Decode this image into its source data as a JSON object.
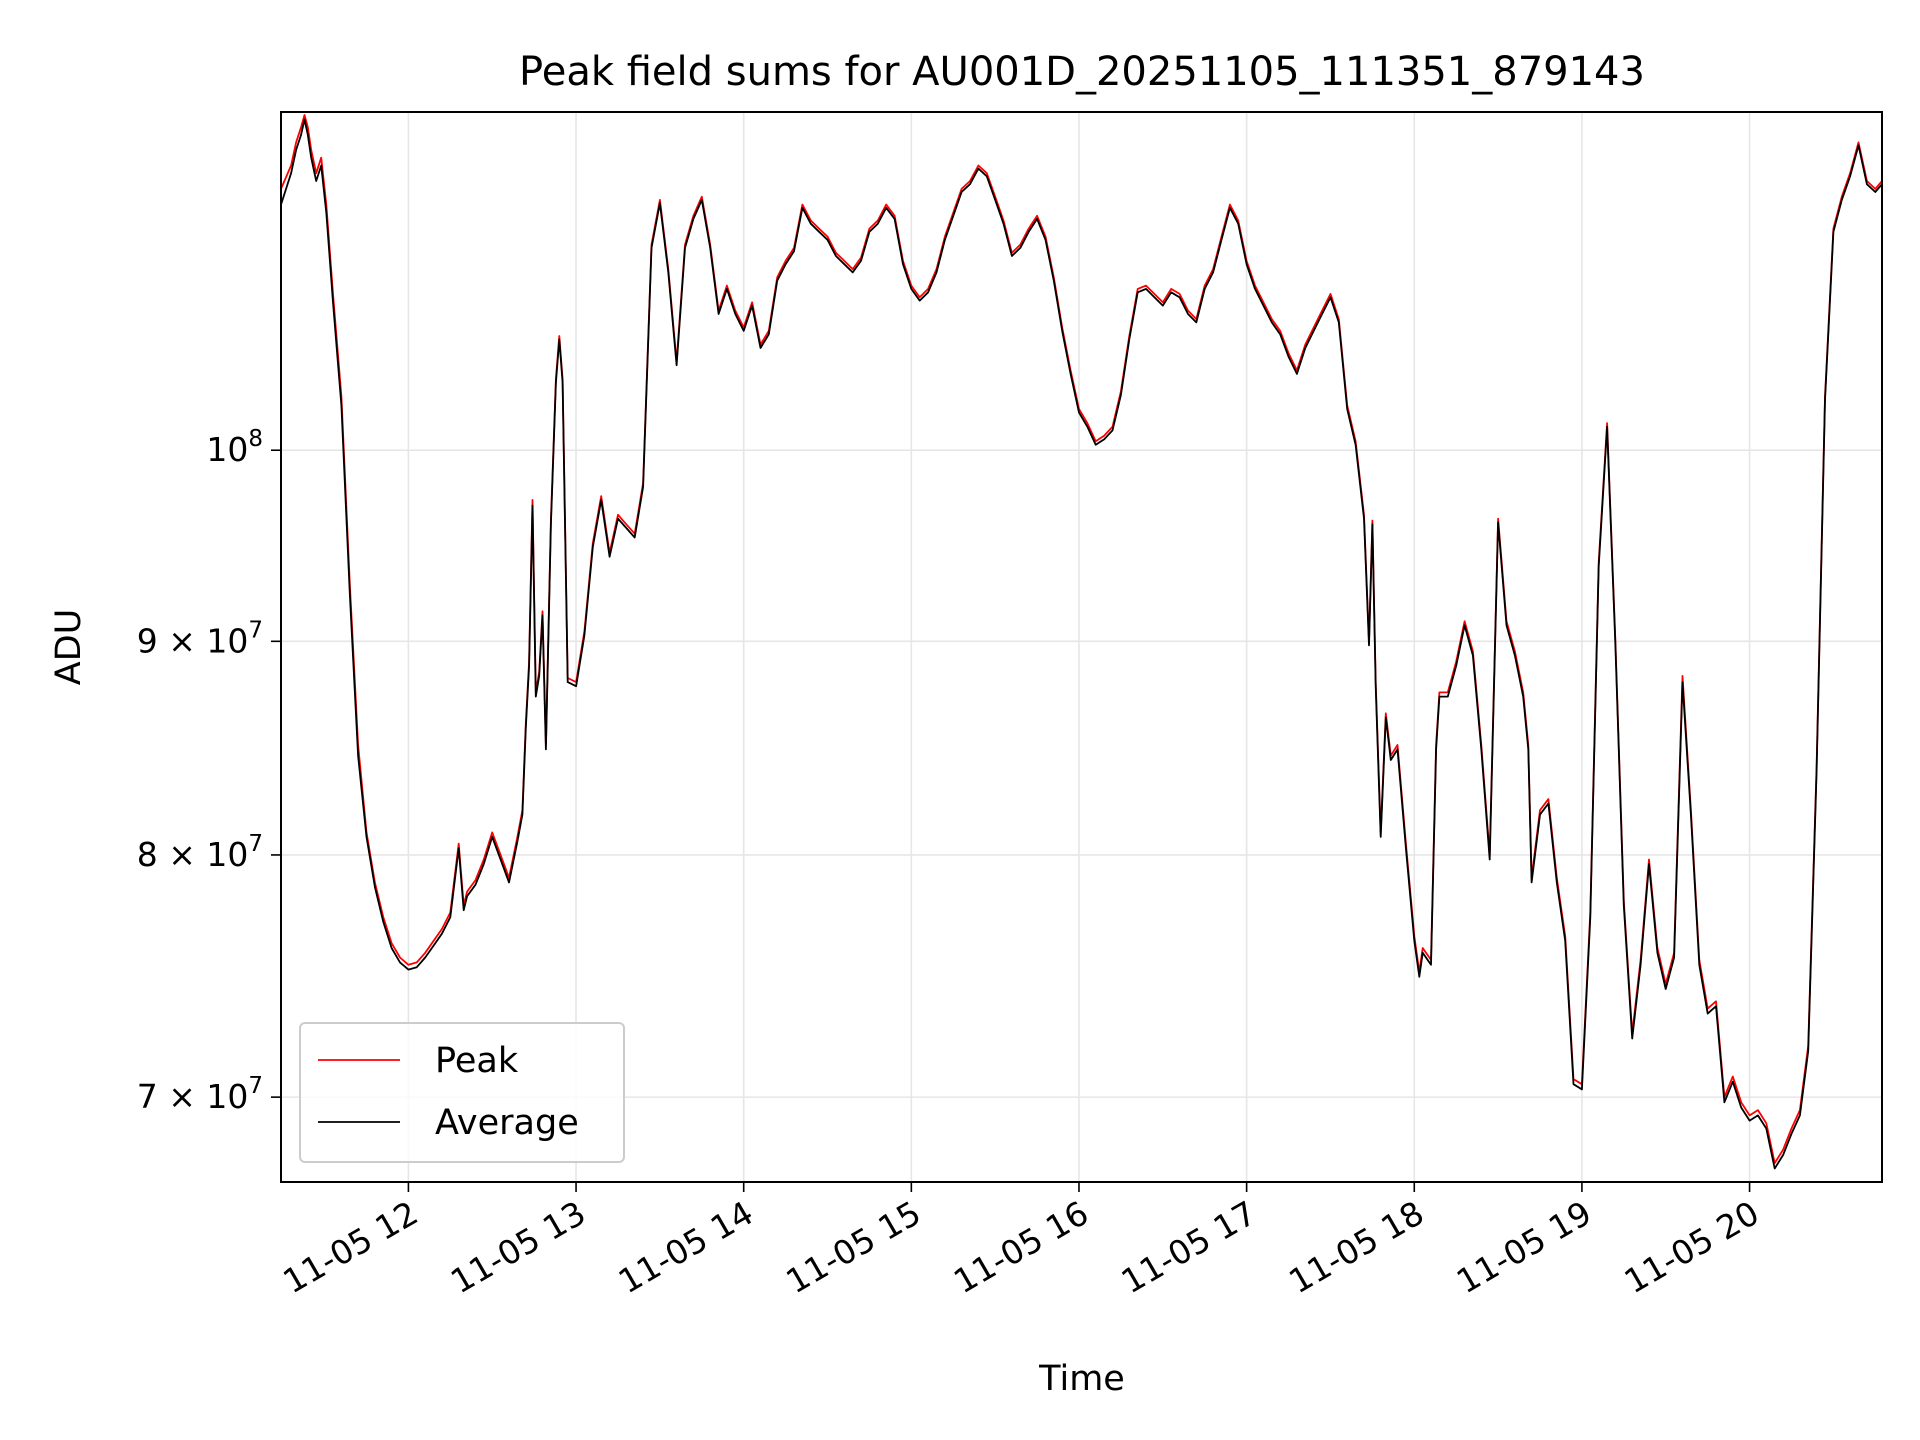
{
  "chart_data": {
    "type": "line",
    "title": "Peak field sums for AU001D_20251105_111351_879143",
    "xlabel": "Time",
    "ylabel": "ADU",
    "x_unit": "hours (Nov 5)",
    "xlim": [
      11.24,
      20.79
    ],
    "ylim": [
      66800000,
      120500000
    ],
    "yscale": "log",
    "grid": true,
    "legend_position": "lower-left",
    "x_ticks": [
      {
        "value": 12,
        "label": "11-05 12"
      },
      {
        "value": 13,
        "label": "11-05 13"
      },
      {
        "value": 14,
        "label": "11-05 14"
      },
      {
        "value": 15,
        "label": "11-05 15"
      },
      {
        "value": 16,
        "label": "11-05 16"
      },
      {
        "value": 17,
        "label": "11-05 17"
      },
      {
        "value": 18,
        "label": "11-05 18"
      },
      {
        "value": 19,
        "label": "11-05 19"
      },
      {
        "value": 20,
        "label": "11-05 20"
      }
    ],
    "y_ticks": [
      {
        "value": 70000000,
        "mantissa": "7",
        "exponent": "7"
      },
      {
        "value": 80000000,
        "mantissa": "8",
        "exponent": "7"
      },
      {
        "value": 90000000,
        "mantissa": "9",
        "exponent": "7"
      },
      {
        "value": 100000000,
        "mantissa": "",
        "exponent": "8"
      }
    ],
    "tick_base": "10",
    "tick_times": "×",
    "series": [
      {
        "name": "Peak",
        "color": "#ff0000"
      },
      {
        "name": "Average",
        "color": "#000000"
      }
    ],
    "x": [
      11.24,
      11.3,
      11.33,
      11.36,
      11.38,
      11.4,
      11.42,
      11.45,
      11.48,
      11.51,
      11.55,
      11.6,
      11.65,
      11.7,
      11.75,
      11.8,
      11.85,
      11.9,
      11.95,
      12.0,
      12.05,
      12.1,
      12.15,
      12.2,
      12.25,
      12.3,
      12.33,
      12.35,
      12.4,
      12.45,
      12.5,
      12.55,
      12.6,
      12.65,
      12.68,
      12.7,
      12.72,
      12.74,
      12.76,
      12.78,
      12.8,
      12.82,
      12.85,
      12.88,
      12.9,
      12.92,
      12.95,
      13.0,
      13.05,
      13.1,
      13.15,
      13.2,
      13.25,
      13.3,
      13.35,
      13.4,
      13.45,
      13.5,
      13.55,
      13.6,
      13.65,
      13.7,
      13.75,
      13.8,
      13.85,
      13.9,
      13.95,
      14.0,
      14.05,
      14.1,
      14.15,
      14.2,
      14.25,
      14.3,
      14.35,
      14.4,
      14.45,
      14.5,
      14.55,
      14.6,
      14.65,
      14.7,
      14.75,
      14.8,
      14.85,
      14.9,
      14.95,
      15.0,
      15.05,
      15.1,
      15.15,
      15.2,
      15.25,
      15.3,
      15.35,
      15.4,
      15.45,
      15.5,
      15.55,
      15.6,
      15.65,
      15.7,
      15.75,
      15.8,
      15.85,
      15.9,
      15.95,
      16.0,
      16.05,
      16.1,
      16.15,
      16.2,
      16.25,
      16.3,
      16.35,
      16.4,
      16.45,
      16.5,
      16.55,
      16.6,
      16.65,
      16.7,
      16.75,
      16.8,
      16.85,
      16.9,
      16.95,
      17.0,
      17.05,
      17.1,
      17.15,
      17.2,
      17.25,
      17.3,
      17.35,
      17.4,
      17.45,
      17.5,
      17.55,
      17.6,
      17.65,
      17.7,
      17.73,
      17.75,
      17.77,
      17.8,
      17.83,
      17.86,
      17.9,
      17.95,
      18.0,
      18.03,
      18.05,
      18.1,
      18.13,
      18.15,
      18.2,
      18.25,
      18.3,
      18.35,
      18.4,
      18.45,
      18.5,
      18.55,
      18.6,
      18.65,
      18.68,
      18.7,
      18.75,
      18.8,
      18.85,
      18.9,
      18.95,
      19.0,
      19.05,
      19.1,
      19.15,
      19.2,
      19.25,
      19.3,
      19.35,
      19.4,
      19.45,
      19.5,
      19.55,
      19.6,
      19.65,
      19.7,
      19.75,
      19.8,
      19.85,
      19.9,
      19.95,
      20.0,
      20.05,
      20.1,
      20.15,
      20.2,
      20.25,
      20.3,
      20.35,
      20.4,
      20.45,
      20.5,
      20.55,
      20.6,
      20.65,
      20.7,
      20.75,
      20.79
    ],
    "peak": [
      115500000,
      117000000,
      118500000,
      119500000,
      120300000,
      119500000,
      118000000,
      116500000,
      117500000,
      114500000,
      109000000,
      103000000,
      93000000,
      85000000,
      81000000,
      78800000,
      77300000,
      76200000,
      75600000,
      75300000,
      75400000,
      75800000,
      76300000,
      76800000,
      77500000,
      80500000,
      77800000,
      78400000,
      78900000,
      79800000,
      81000000,
      80000000,
      79000000,
      80800000,
      82000000,
      86000000,
      89000000,
      97300000,
      87500000,
      88500000,
      91500000,
      85000000,
      96200000,
      104000000,
      106500000,
      104000000,
      88200000,
      88000000,
      90500000,
      95000000,
      97500000,
      94500000,
      96500000,
      96000000,
      95500000,
      98200000,
      112000000,
      114800000,
      110500000,
      105000000,
      112000000,
      113800000,
      115000000,
      112000000,
      108000000,
      109500000,
      108000000,
      107000000,
      108500000,
      106000000,
      106800000,
      110000000,
      111000000,
      111800000,
      114500000,
      113500000,
      113000000,
      112500000,
      111500000,
      111000000,
      110500000,
      111200000,
      113000000,
      113500000,
      114500000,
      113800000,
      111000000,
      109500000,
      108800000,
      109300000,
      110500000,
      112500000,
      114000000,
      115500000,
      116000000,
      117000000,
      116500000,
      115000000,
      113500000,
      111500000,
      112000000,
      113000000,
      113800000,
      112500000,
      110000000,
      107000000,
      104500000,
      102300000,
      101500000,
      100500000,
      100800000,
      101300000,
      103300000,
      106500000,
      109300000,
      109500000,
      109000000,
      108500000,
      109300000,
      109000000,
      108000000,
      107500000,
      109500000,
      110500000,
      112500000,
      114500000,
      113500000,
      111000000,
      109500000,
      108500000,
      107500000,
      106800000,
      105500000,
      104500000,
      106000000,
      107000000,
      108000000,
      109000000,
      107500000,
      102500000,
      100500000,
      96500000,
      90000000,
      96200000,
      88000000,
      81000000,
      86500000,
      84500000,
      85000000,
      80500000,
      76500000,
      75000000,
      76000000,
      75500000,
      85000000,
      87500000,
      87500000,
      89000000,
      91000000,
      89500000,
      85000000,
      80000000,
      96300000,
      91000000,
      89500000,
      87500000,
      85000000,
      79000000,
      82000000,
      82500000,
      79000000,
      76500000,
      70700000,
      70500000,
      77500000,
      94000000,
      101500000,
      90000000,
      78000000,
      72500000,
      75500000,
      79800000,
      76000000,
      74500000,
      75800000,
      88300000,
      82000000,
      75500000,
      73500000,
      73800000,
      70000000,
      70800000,
      69800000,
      69300000,
      69500000,
      69000000,
      67500000,
      68000000,
      68800000,
      69500000,
      72000000,
      84000000,
      103000000,
      113000000,
      115000000,
      116500000,
      118500000,
      116000000,
      115500000,
      116000000
    ],
    "average": [
      114500000,
      116500000,
      118000000,
      119000000,
      120000000,
      119000000,
      117500000,
      116000000,
      117000000,
      114000000,
      108500000,
      102500000,
      92500000,
      84500000,
      80800000,
      78600000,
      77100000,
      76000000,
      75400000,
      75100000,
      75200000,
      75600000,
      76100000,
      76600000,
      77300000,
      80300000,
      77600000,
      78200000,
      78700000,
      79600000,
      80800000,
      79800000,
      78800000,
      80600000,
      81800000,
      85800000,
      88800000,
      97000000,
      87300000,
      88300000,
      91300000,
      84800000,
      96000000,
      103800000,
      106300000,
      103800000,
      88000000,
      87800000,
      90300000,
      94800000,
      97300000,
      94300000,
      96300000,
      95800000,
      95300000,
      98000000,
      111800000,
      114600000,
      110300000,
      104800000,
      111800000,
      113600000,
      114800000,
      111800000,
      107800000,
      109300000,
      107800000,
      106800000,
      108300000,
      105800000,
      106600000,
      109800000,
      110800000,
      111600000,
      114300000,
      113300000,
      112800000,
      112300000,
      111300000,
      110800000,
      110300000,
      111000000,
      112800000,
      113300000,
      114300000,
      113600000,
      110800000,
      109300000,
      108600000,
      109100000,
      110300000,
      112300000,
      113800000,
      115300000,
      115800000,
      116800000,
      116300000,
      114800000,
      113300000,
      111300000,
      111800000,
      112800000,
      113600000,
      112300000,
      109800000,
      106800000,
      104300000,
      102100000,
      101300000,
      100300000,
      100600000,
      101100000,
      103100000,
      106300000,
      109100000,
      109300000,
      108800000,
      108300000,
      109100000,
      108800000,
      107800000,
      107300000,
      109300000,
      110300000,
      112300000,
      114300000,
      113300000,
      110800000,
      109300000,
      108300000,
      107300000,
      106600000,
      105300000,
      104300000,
      105800000,
      106800000,
      107800000,
      108800000,
      107300000,
      102300000,
      100300000,
      96300000,
      89800000,
      96000000,
      87800000,
      80800000,
      86300000,
      84300000,
      84800000,
      80300000,
      76300000,
      74800000,
      75800000,
      75300000,
      84800000,
      87300000,
      87300000,
      88800000,
      90800000,
      89300000,
      84800000,
      79800000,
      96100000,
      90800000,
      89300000,
      87300000,
      84800000,
      78800000,
      81800000,
      82300000,
      78800000,
      76300000,
      70500000,
      70300000,
      77300000,
      93800000,
      101300000,
      89800000,
      77800000,
      72300000,
      75300000,
      79600000,
      75800000,
      74300000,
      75600000,
      88000000,
      81800000,
      75300000,
      73300000,
      73600000,
      69800000,
      70600000,
      69600000,
      69100000,
      69300000,
      68800000,
      67300000,
      67800000,
      68600000,
      69300000,
      71800000,
      83800000,
      102800000,
      112800000,
      114800000,
      116300000,
      118300000,
      115800000,
      115300000,
      115800000
    ]
  }
}
